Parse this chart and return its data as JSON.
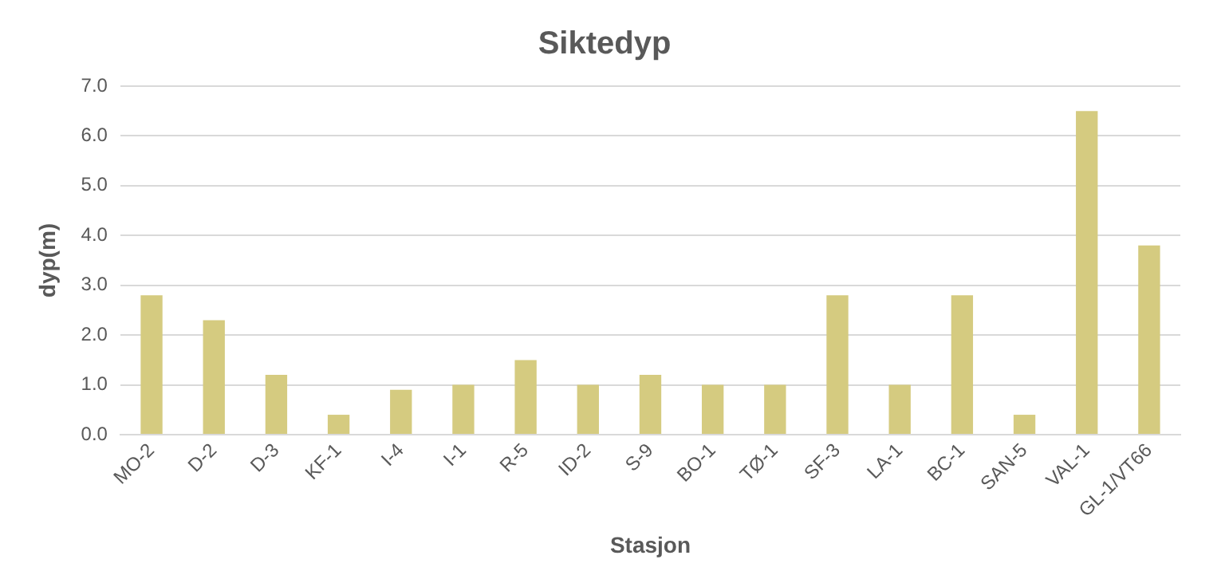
{
  "chart_data": {
    "type": "bar",
    "title": "Siktedyp",
    "xlabel": "Stasjon",
    "ylabel": "dyp(m)",
    "categories": [
      "MO-2",
      "D-2",
      "D-3",
      "KF-1",
      "I-4",
      "I-1",
      "R-5",
      "ID-2",
      "S-9",
      "BO-1",
      "TØ-1",
      "SF-3",
      "LA-1",
      "BC-1",
      "SAN-5",
      "VAL-1",
      "GL-1/VT66"
    ],
    "values": [
      2.8,
      2.3,
      1.2,
      0.4,
      0.9,
      1.0,
      1.5,
      1.0,
      1.2,
      1.0,
      1.0,
      2.8,
      1.0,
      2.8,
      0.4,
      6.5,
      3.8
    ],
    "color": "#d5cb80",
    "ylim": [
      0,
      7
    ],
    "yticks": [
      {
        "value": 0,
        "label": "0.0"
      },
      {
        "value": 1,
        "label": "1.0"
      },
      {
        "value": 2,
        "label": "2.0"
      },
      {
        "value": 3,
        "label": "3.0"
      },
      {
        "value": 4,
        "label": "4.0"
      },
      {
        "value": 5,
        "label": "5.0"
      },
      {
        "value": 6,
        "label": "6.0"
      },
      {
        "value": 7,
        "label": "7.0"
      }
    ],
    "grid": "y"
  }
}
